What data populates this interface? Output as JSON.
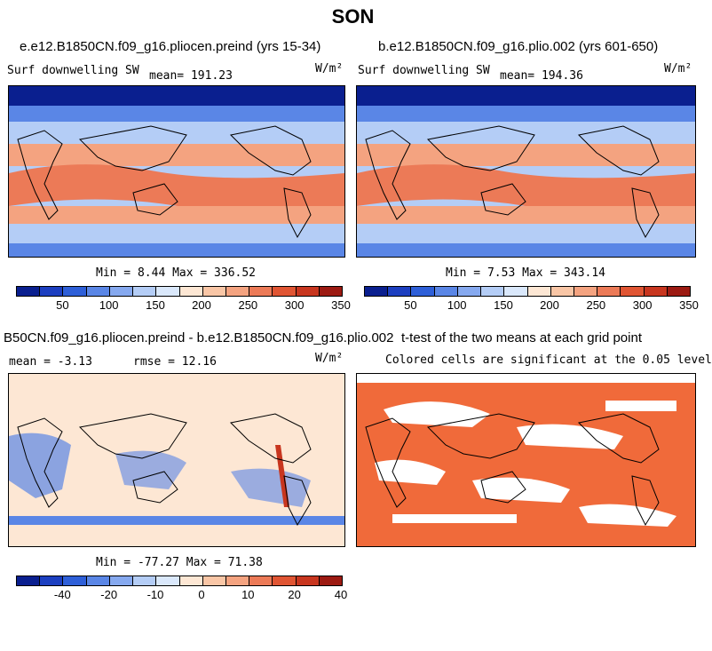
{
  "main_title": "SON",
  "panels": [
    {
      "title": "e.e12.B1850CN.f09_g16.pliocen.preind (yrs 15-34)",
      "left_label": "Surf downwelling SW",
      "mean_text": "mean= 191.23",
      "units": "W/m²",
      "stats": "Min =   8.44 Max = 336.52"
    },
    {
      "title": "b.e12.B1850CN.f09_g16.plio.002 (yrs 601-650)",
      "left_label": "Surf downwelling SW",
      "mean_text": "mean= 194.36",
      "units": "W/m²",
      "stats": "Min =   7.53 Max = 343.14"
    },
    {
      "title": "B50CN.f09_g16.pliocen.preind - b.e12.B1850CN.f09_g16.plio.002",
      "left_label": "mean =  -3.13",
      "mean_text": "rmse =  12.16",
      "units": "W/m²",
      "stats": "Min = -77.27 Max =  71.38"
    },
    {
      "title": "t-test of the two means at each grid point",
      "subtitle": "Colored cells are significant at the 0.05 level"
    }
  ],
  "colorbars": {
    "abs": {
      "colors": [
        "#0a1f8f",
        "#1c3fc0",
        "#2e5fd8",
        "#5a86e6",
        "#86a9ef",
        "#b4cdf6",
        "#dae8fb",
        "#fde7d4",
        "#f9c6a6",
        "#f4a380",
        "#ec7a57",
        "#e05533",
        "#c8361f",
        "#9c1a12"
      ],
      "ticks": [
        "50",
        "100",
        "150",
        "200",
        "250",
        "300",
        "350"
      ]
    },
    "diff": {
      "colors": [
        "#0a1f8f",
        "#1c3fc0",
        "#2e5fd8",
        "#5a86e6",
        "#86a9ef",
        "#b4cdf6",
        "#dae8fb",
        "#fde7d4",
        "#f9c6a6",
        "#f4a380",
        "#ec7a57",
        "#e05533",
        "#c8361f",
        "#9c1a12"
      ],
      "ticks": [
        "-40",
        "-20",
        "-10",
        "0",
        "10",
        "20",
        "40"
      ]
    }
  },
  "map_colors": {
    "polar": "#0a1f8f",
    "high_lat": "#5a86e6",
    "mid_lat": "#b4cdf6",
    "subtropic": "#f4a380",
    "tropic": "#ec7a57",
    "diff_bg": "#fde7d4",
    "diff_neg": "#5a86e6",
    "ttest": "#f06a3a"
  }
}
